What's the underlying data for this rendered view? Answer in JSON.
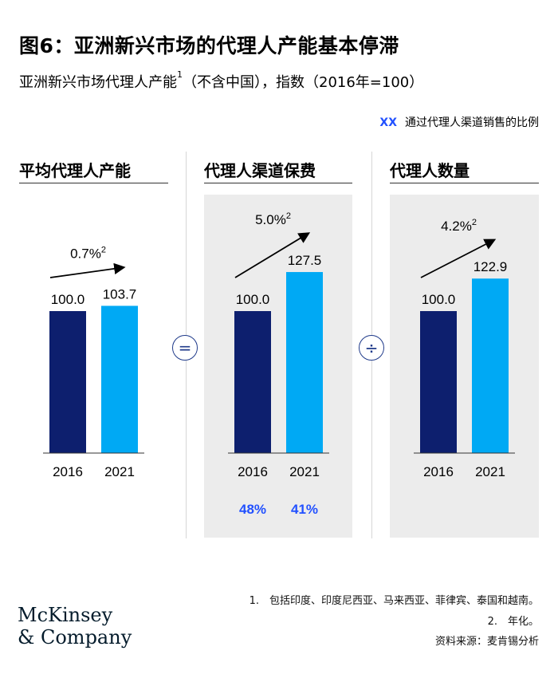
{
  "title": "图6：亚洲新兴市场的代理人产能基本停滞",
  "subtitle_main": "亚洲新兴市场代理人产能",
  "subtitle_sup": "1",
  "subtitle_rest": "（不含中国），指数（2016年=100）",
  "legend": {
    "marker": "XX",
    "text": "通过代理人渠道销售的比例",
    "marker_color": "#2251ff"
  },
  "operators": {
    "equals": "=",
    "divide": "÷"
  },
  "colors": {
    "dark": "#0d1f6e",
    "light": "#00a9f4",
    "shade": "#ececec",
    "accent": "#2251ff"
  },
  "chart_data": [
    {
      "type": "bar",
      "title": "平均代理人产能",
      "categories": [
        "2016",
        "2021"
      ],
      "values": [
        100.0,
        103.7
      ],
      "value_labels": [
        "100.0",
        "103.7"
      ],
      "growth_label": "0.7%",
      "growth_sup": "2",
      "shaded": false
    },
    {
      "type": "bar",
      "title": "代理人渠道保费",
      "categories": [
        "2016",
        "2021"
      ],
      "values": [
        100.0,
        127.5
      ],
      "value_labels": [
        "100.0",
        "127.5"
      ],
      "growth_label": "5.0%",
      "growth_sup": "2",
      "shaded": true,
      "agent_share": [
        "48%",
        "41%"
      ]
    },
    {
      "type": "bar",
      "title": "代理人数量",
      "categories": [
        "2016",
        "2021"
      ],
      "values": [
        100.0,
        122.9
      ],
      "value_labels": [
        "100.0",
        "122.9"
      ],
      "growth_label": "4.2%",
      "growth_sup": "2",
      "shaded": true
    }
  ],
  "footnotes": {
    "note1": "1.　包括印度、印度尼西亚、马来西亚、菲律宾、泰国和越南。",
    "note2": "2.　年化。",
    "source": "资料来源：麦肯锡分析"
  },
  "logo": {
    "line1": "McKinsey",
    "line2": "& Company"
  }
}
